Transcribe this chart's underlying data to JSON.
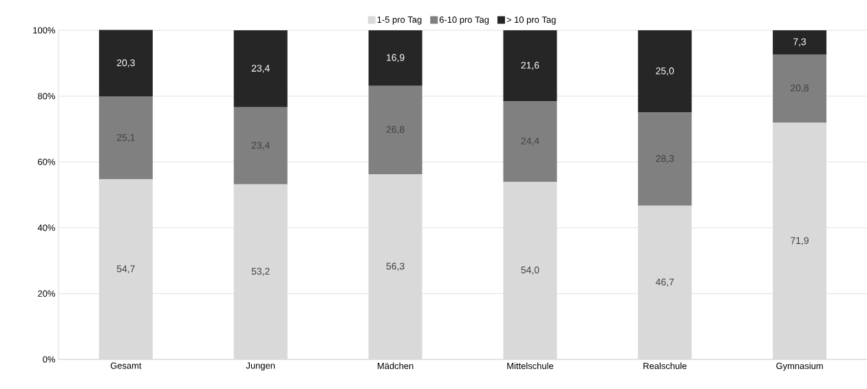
{
  "chart_data": {
    "type": "bar",
    "stacked": true,
    "categories": [
      "Gesamt",
      "Jungen",
      "Mädchen",
      "Mittelschule",
      "Realschule",
      "Gymnasium"
    ],
    "series": [
      {
        "name": "1-5 pro Tag",
        "color": "#d9d9d9",
        "values": [
          54.7,
          53.2,
          56.3,
          54.0,
          46.7,
          71.9
        ],
        "value_labels": [
          "54,7",
          "53,2",
          "56,3",
          "54,0",
          "46,7",
          "71,9"
        ]
      },
      {
        "name": "6-10 pro Tag",
        "color": "#808080",
        "values": [
          25.1,
          23.4,
          26.8,
          24.4,
          28.3,
          20.8
        ],
        "value_labels": [
          "25,1",
          "23,4",
          "26,8",
          "24,4",
          "28,3",
          "20,8"
        ]
      },
      {
        "name": "> 10 pro Tag",
        "color": "#262626",
        "values": [
          20.3,
          23.4,
          16.9,
          21.6,
          25.0,
          7.3
        ],
        "value_labels": [
          "20,3",
          "23,4",
          "16,9",
          "21,6",
          "25,0",
          "7,3"
        ]
      }
    ],
    "ylim": [
      0,
      100
    ],
    "yticks": [
      {
        "value": 0,
        "label": "0%"
      },
      {
        "value": 20,
        "label": "20%"
      },
      {
        "value": 40,
        "label": "40%"
      },
      {
        "value": 60,
        "label": "60%"
      },
      {
        "value": 80,
        "label": "80%"
      },
      {
        "value": 100,
        "label": "100%"
      }
    ],
    "grid": "y",
    "legend": "top"
  }
}
